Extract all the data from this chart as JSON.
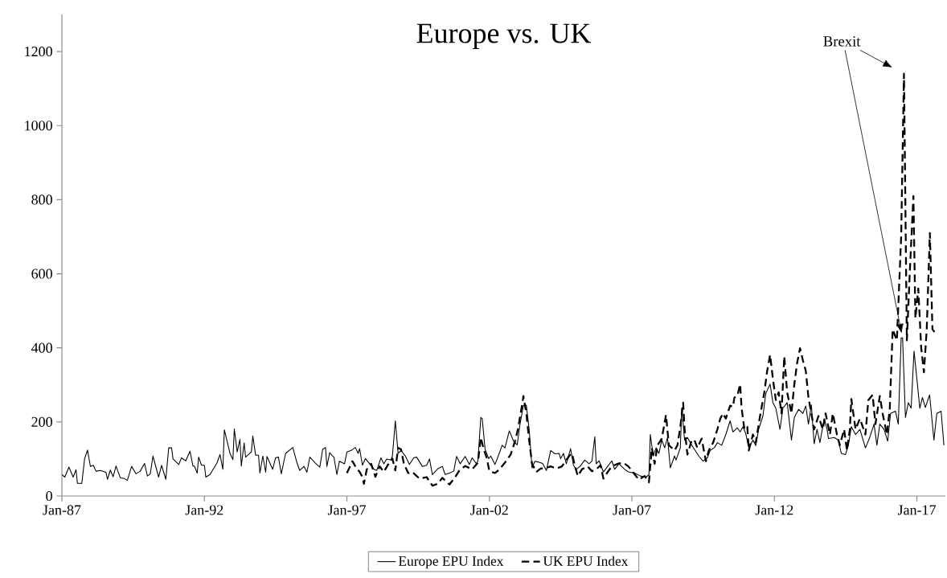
{
  "chart_data": {
    "type": "line",
    "title": "Europe vs. UK",
    "xlim": [
      "1987-01",
      "2018-01"
    ],
    "ylim": [
      0,
      1300
    ],
    "yticks": [
      0,
      200,
      400,
      600,
      800,
      1000,
      1200
    ],
    "xticks": [
      {
        "value": "1987-01",
        "label": "Jan-87"
      },
      {
        "value": "1992-01",
        "label": "Jan-92"
      },
      {
        "value": "1997-01",
        "label": "Jan-97"
      },
      {
        "value": "2002-01",
        "label": "Jan-02"
      },
      {
        "value": "2007-01",
        "label": "Jan-07"
      },
      {
        "value": "2012-01",
        "label": "Jan-12"
      },
      {
        "value": "2017-01",
        "label": "Jan-17"
      }
    ],
    "grid": false,
    "legend": "bottom",
    "marker": "none",
    "annotations": [
      "Brexit"
    ],
    "series": [
      {
        "name": "Europe EPU Index",
        "color": "#000000",
        "line_style": "solid",
        "x": [
          "1987-01-01",
          "1987-02-07",
          "1987-04-01",
          "1987-05-25",
          "1987-07-01",
          "1987-07-19",
          "1987-09-13",
          "1987-10-19",
          "1987-11-25",
          "1988-01-01",
          "1988-02-07",
          "1988-03-13",
          "1988-05-07",
          "1988-07-19",
          "1988-08-07",
          "1988-09-13",
          "1988-10-19",
          "1988-11-25",
          "1989-01-19",
          "1989-03-13",
          "1989-04-19",
          "1989-06-13",
          "1989-08-07",
          "1989-10-01",
          "1989-11-25",
          "1990-01-01",
          "1990-02-07",
          "1990-03-13",
          "1990-05-25",
          "1990-07-01",
          "1990-08-25",
          "1990-10-01",
          "1990-11-07",
          "1990-11-25",
          "1991-02-07",
          "1991-03-13",
          "1991-05-07",
          "1991-07-01",
          "1991-08-07",
          "1991-08-25",
          "1991-10-01",
          "1991-10-19",
          "1991-11-25",
          "1992-01-01",
          "1992-01-19",
          "1992-03-13",
          "1992-06-13",
          "1992-07-19",
          "1992-08-25",
          "1992-09-13",
          "1992-11-25",
          "1993-01-01",
          "1993-01-19",
          "1993-02-25",
          "1993-04-01",
          "1993-04-19",
          "1993-05-25",
          "1993-06-13",
          "1993-08-25",
          "1993-09-13",
          "1993-10-19",
          "1993-11-25",
          "1993-12-13",
          "1994-01-19",
          "1994-02-25",
          "1994-03-13",
          "1994-05-25",
          "1994-07-01",
          "1994-08-07",
          "1994-09-13",
          "1994-11-07",
          "1995-02-07",
          "1995-04-01",
          "1995-05-07",
          "1995-07-01",
          "1995-08-07",
          "1995-09-13",
          "1995-11-25",
          "1996-01-19",
          "1996-02-25",
          "1996-04-01",
          "1996-04-19",
          "1996-05-25",
          "1996-07-01",
          "1996-07-19",
          "1996-08-25",
          "1996-09-27",
          "1996-12-02",
          "1997-01-01",
          "1997-02-25",
          "1997-04-19",
          "1997-05-25",
          "1997-06-13",
          "1997-07-19",
          "1997-08-25",
          "1997-10-19",
          "1997-12-13",
          "1998-01-19",
          "1998-03-13",
          "1998-04-19",
          "1998-05-25",
          "1998-07-19",
          "1998-08-07",
          "1998-09-13",
          "1998-10-19",
          "1998-11-25",
          "1999-01-19",
          "1999-03-13",
          "1999-05-07",
          "1999-06-13",
          "1999-08-25",
          "1999-10-19",
          "1999-11-25",
          "2000-01-01",
          "2000-03-13",
          "2000-05-07",
          "2000-06-13",
          "2000-08-07",
          "2000-10-01",
          "2000-11-07",
          "2000-12-23",
          "2001-02-25",
          "2001-04-19",
          "2001-05-25",
          "2001-07-19",
          "2001-08-07",
          "2001-09-13",
          "2001-10-01",
          "2001-11-07",
          "2001-12-23",
          "2002-01-19",
          "2002-03-13",
          "2002-05-07",
          "2002-06-13",
          "2002-07-19",
          "2002-09-13",
          "2002-11-07",
          "2002-12-23",
          "2003-01-26",
          "2003-03-13",
          "2003-04-19",
          "2003-05-25",
          "2003-07-01",
          "2003-08-07",
          "2003-09-13",
          "2003-11-14",
          "2004-01-01",
          "2004-02-25",
          "2004-04-19",
          "2004-06-13",
          "2004-07-01",
          "2004-08-07",
          "2004-09-13",
          "2004-11-07",
          "2004-12-13",
          "2005-01-19",
          "2005-03-13",
          "2005-05-07",
          "2005-07-01",
          "2005-08-07",
          "2005-09-13",
          "2005-10-01",
          "2005-11-07",
          "2006-01-01",
          "2006-02-25",
          "2006-04-19",
          "2006-05-25",
          "2006-07-19",
          "2006-10-01",
          "2006-11-17",
          "2007-02-07",
          "2007-04-19",
          "2007-07-01",
          "2007-08-07",
          "2007-08-25",
          "2007-10-01",
          "2007-11-07",
          "2007-12-13",
          "2008-01-19",
          "2008-02-25",
          "2008-04-01",
          "2008-05-07",
          "2008-07-01",
          "2008-07-19",
          "2008-09-13",
          "2008-10-01",
          "2008-11-07",
          "2008-12-13",
          "2009-02-07",
          "2009-03-13",
          "2009-05-07",
          "2009-07-01",
          "2009-08-25",
          "2009-10-01",
          "2009-11-25",
          "2010-01-01",
          "2010-02-25",
          "2010-04-19",
          "2010-06-13",
          "2010-07-19",
          "2010-09-13",
          "2010-10-19",
          "2010-11-25",
          "2011-01-01",
          "2011-02-07",
          "2011-04-01",
          "2011-05-07",
          "2011-06-13",
          "2011-08-07",
          "2011-09-13",
          "2011-11-07",
          "2011-12-13",
          "2012-01-19",
          "2012-03-13",
          "2012-04-19",
          "2012-06-13",
          "2012-08-07",
          "2012-09-13",
          "2012-11-07",
          "2013-01-01",
          "2013-02-07",
          "2013-03-13",
          "2013-04-19",
          "2013-05-25",
          "2013-07-01",
          "2013-08-07",
          "2013-10-01",
          "2013-11-07",
          "2013-11-25",
          "2014-02-07",
          "2014-04-01",
          "2014-05-07",
          "2014-07-01",
          "2014-08-07",
          "2014-09-13",
          "2014-11-07",
          "2015-01-01",
          "2015-03-13",
          "2015-05-07",
          "2015-07-01",
          "2015-08-07",
          "2015-09-13",
          "2015-11-07",
          "2015-12-23",
          "2016-01-29",
          "2016-04-01",
          "2016-05-07",
          "2016-06-13",
          "2016-07-01",
          "2016-08-07",
          "2016-09-13",
          "2016-10-19",
          "2016-11-25",
          "2017-01-01",
          "2017-02-07",
          "2017-03-13",
          "2017-04-19",
          "2017-06-13",
          "2017-08-07",
          "2017-09-13",
          "2017-11-07",
          "2017-12-13"
        ],
        "values": [
          58,
          51,
          78,
          51,
          71,
          34,
          34,
          101,
          124,
          80,
          83,
          67,
          69,
          64,
          45,
          70,
          52,
          81,
          49,
          47,
          42,
          80,
          60,
          67,
          88,
          54,
          60,
          108,
          51,
          83,
          45,
          130,
          130,
          100,
          85,
          103,
          95,
          121,
          81,
          81,
          62,
          105,
          83,
          83,
          51,
          58,
          90,
          112,
          72,
          179,
          115,
          98,
          181,
          119,
          153,
          81,
          143,
          105,
          119,
          162,
          110,
          110,
          62,
          108,
          64,
          107,
          72,
          103,
          105,
          60,
          115,
          131,
          90,
          69,
          80,
          64,
          105,
          88,
          78,
          126,
          131,
          80,
          117,
          108,
          105,
          58,
          94,
          87,
          119,
          123,
          131,
          115,
          128,
          83,
          101,
          87,
          72,
          69,
          103,
          87,
          100,
          97,
          108,
          203,
          115,
          123,
          108,
          85,
          103,
          105,
          80,
          83,
          100,
          58,
          74,
          80,
          58,
          62,
          67,
          107,
          87,
          107,
          85,
          103,
          87,
          95,
          212,
          209,
          126,
          101,
          108,
          85,
          115,
          137,
          130,
          176,
          148,
          138,
          191,
          245,
          245,
          180,
          76,
          94,
          92,
          88,
          69,
          123,
          114,
          115,
          101,
          115,
          87,
          128,
          83,
          72,
          81,
          97,
          87,
          94,
          160,
          87,
          95,
          65,
          80,
          95,
          72,
          87,
          72,
          65,
          62,
          54,
          51,
          58,
          166,
          108,
          130,
          115,
          151,
          130,
          158,
          76,
          108,
          97,
          130,
          237,
          151,
          158,
          137,
          126,
          108,
          94,
          103,
          123,
          131,
          144,
          137,
          166,
          203,
          173,
          184,
          173,
          187,
          167,
          130,
          151,
          136,
          180,
          216,
          277,
          302,
          252,
          237,
          180,
          237,
          252,
          151,
          212,
          234,
          223,
          243,
          194,
          246,
          141,
          180,
          144,
          209,
          180,
          155,
          158,
          151,
          115,
          112,
          138,
          187,
          166,
          180,
          130,
          158,
          194,
          137,
          194,
          180,
          148,
          223,
          229,
          194,
          427,
          427,
          212,
          252,
          237,
          391,
          316,
          237,
          266,
          239,
          273,
          151,
          223,
          229,
          137
        ]
      },
      {
        "name": "UK EPU Index",
        "color": "#000000",
        "line_style": "dashed",
        "x": [
          "1997-01-01",
          "1997-03-13",
          "1997-04-19",
          "1997-06-13",
          "1997-07-19",
          "1997-08-07",
          "1997-09-13",
          "1997-11-07",
          "1998-01-01",
          "1998-02-25",
          "1998-04-19",
          "1998-06-13",
          "1998-08-07",
          "1998-09-13",
          "1998-10-19",
          "1998-11-25",
          "1999-01-01",
          "1999-02-25",
          "1999-04-19",
          "1999-07-19",
          "1999-10-19",
          "2000-01-01",
          "2000-03-13",
          "2000-05-07",
          "2000-08-07",
          "2000-10-19",
          "2000-12-13",
          "2001-02-25",
          "2001-05-25",
          "2001-08-07",
          "2001-09-13",
          "2001-10-19",
          "2001-11-25",
          "2002-01-01",
          "2002-03-13",
          "2002-05-07",
          "2002-07-19",
          "2002-10-01",
          "2002-11-25",
          "2003-01-01",
          "2003-02-25",
          "2003-03-13",
          "2003-04-19",
          "2003-05-25",
          "2003-07-01",
          "2003-08-25",
          "2003-10-19",
          "2004-01-01",
          "2004-02-25",
          "2004-05-07",
          "2004-07-19",
          "2004-10-19",
          "2004-11-25",
          "2005-01-01",
          "2005-02-07",
          "2005-04-01",
          "2005-06-13",
          "2005-08-07",
          "2005-10-01",
          "2005-11-25",
          "2006-01-01",
          "2006-02-25",
          "2006-04-19",
          "2006-07-01",
          "2006-09-13",
          "2006-11-17",
          "2007-02-07",
          "2007-04-01",
          "2007-06-13",
          "2007-08-07",
          "2007-09-13",
          "2007-10-19",
          "2007-11-25",
          "2008-01-19",
          "2008-03-13",
          "2008-04-19",
          "2008-07-01",
          "2008-08-07",
          "2008-09-13",
          "2008-10-19",
          "2008-11-07",
          "2008-12-13",
          "2009-02-07",
          "2009-03-13",
          "2009-04-19",
          "2009-06-13",
          "2009-08-07",
          "2009-09-13",
          "2009-11-07",
          "2010-01-01",
          "2010-02-07",
          "2010-03-13",
          "2010-04-19",
          "2010-06-13",
          "2010-07-19",
          "2010-08-07",
          "2010-09-13",
          "2010-10-19",
          "2010-11-07",
          "2010-12-13",
          "2011-01-19",
          "2011-02-07",
          "2011-04-01",
          "2011-05-07",
          "2011-07-01",
          "2011-08-25",
          "2011-10-01",
          "2011-11-07",
          "2011-12-13",
          "2012-01-19",
          "2012-02-25",
          "2012-04-01",
          "2012-05-07",
          "2012-06-13",
          "2012-08-07",
          "2012-09-13",
          "2012-10-19",
          "2012-11-25",
          "2013-01-01",
          "2013-02-07",
          "2013-03-13",
          "2013-04-19",
          "2013-05-25",
          "2013-07-19",
          "2013-09-13",
          "2013-10-19",
          "2013-12-13",
          "2014-01-19",
          "2014-03-13",
          "2014-04-19",
          "2014-06-13",
          "2014-07-19",
          "2014-08-25",
          "2014-09-13",
          "2014-11-07",
          "2015-01-01",
          "2015-03-13",
          "2015-04-19",
          "2015-06-13",
          "2015-07-19",
          "2015-09-13",
          "2015-10-19",
          "2015-12-13",
          "2016-01-19",
          "2016-02-25",
          "2016-04-19",
          "2016-06-13",
          "2016-07-19",
          "2016-08-25",
          "2016-10-01",
          "2016-11-17",
          "2016-12-13",
          "2017-01-19",
          "2017-02-25",
          "2017-04-01",
          "2017-05-07",
          "2017-06-16",
          "2017-07-19",
          "2017-08-25"
        ],
        "values": [
          62,
          94,
          80,
          65,
          51,
          33,
          72,
          87,
          52,
          80,
          65,
          85,
          101,
          69,
          130,
          126,
          87,
          62,
          65,
          47,
          51,
          28,
          33,
          49,
          31,
          51,
          69,
          81,
          72,
          90,
          158,
          126,
          105,
          67,
          62,
          71,
          90,
          112,
          148,
          180,
          248,
          270,
          223,
          151,
          87,
          65,
          74,
          76,
          80,
          74,
          80,
          108,
          115,
          81,
          54,
          72,
          80,
          67,
          72,
          83,
          47,
          65,
          80,
          87,
          90,
          80,
          58,
          44,
          54,
          37,
          130,
          87,
          137,
          155,
          219,
          137,
          123,
          137,
          187,
          252,
          180,
          112,
          151,
          151,
          130,
          155,
          94,
          123,
          144,
          180,
          209,
          223,
          209,
          244,
          241,
          266,
          270,
          302,
          237,
          180,
          187,
          123,
          166,
          144,
          216,
          280,
          338,
          381,
          316,
          259,
          280,
          223,
          377,
          280,
          223,
          302,
          359,
          399,
          366,
          338,
          266,
          223,
          180,
          216,
          180,
          223,
          166,
          223,
          166,
          137,
          180,
          123,
          180,
          262,
          180,
          209,
          166,
          259,
          273,
          194,
          270,
          223,
          166,
          237,
          450,
          420,
          700,
          1140,
          420,
          600,
          810,
          480,
          560,
          400,
          334,
          450,
          710,
          450,
          440
        ]
      }
    ]
  }
}
